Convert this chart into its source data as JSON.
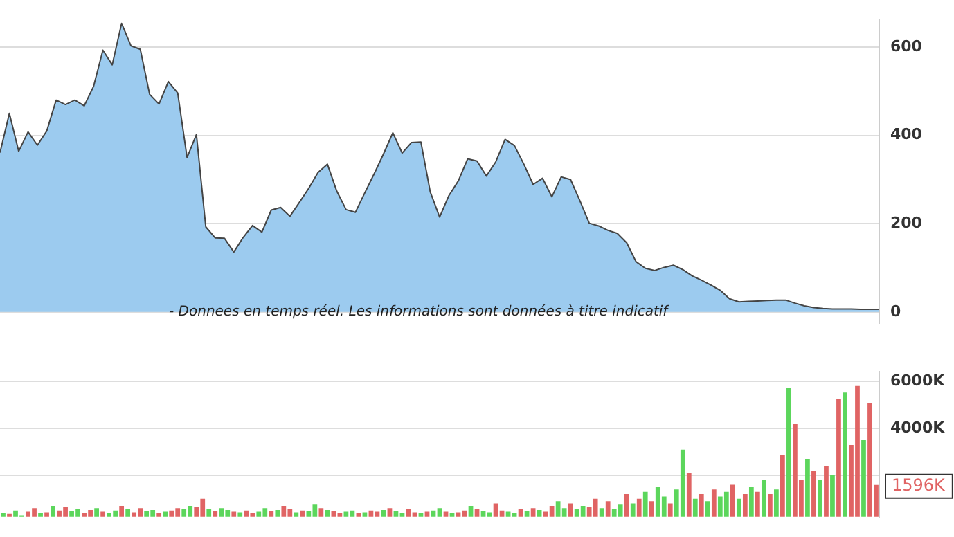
{
  "chart_data": [
    {
      "type": "area",
      "categories": [
        null,
        null,
        null,
        null,
        null,
        null,
        null,
        null,
        null,
        null,
        null,
        null,
        null,
        null,
        null,
        null,
        null,
        null,
        null,
        null,
        null,
        null,
        null,
        null,
        null,
        null,
        null,
        null,
        null,
        null,
        null,
        null,
        null,
        null,
        null,
        null,
        null,
        null,
        null,
        null,
        null,
        null,
        null,
        null,
        null,
        null,
        null,
        null,
        null,
        null,
        null,
        null,
        null,
        null,
        null,
        null,
        null,
        null,
        null,
        null,
        null,
        null,
        null,
        null,
        null,
        null,
        null,
        null,
        null,
        null,
        null,
        null,
        null,
        null,
        null,
        null,
        null,
        null,
        null,
        null,
        null,
        null,
        null,
        null,
        null,
        null,
        null,
        null,
        null,
        null,
        null,
        null,
        null,
        null,
        null
      ],
      "series": [
        {
          "color": "#9ccbef",
          "values": [
            361,
            450,
            364,
            408,
            378,
            410,
            480,
            470,
            480,
            467,
            511,
            593,
            560,
            654,
            603,
            595,
            493,
            471,
            522,
            496,
            350,
            402,
            193,
            168,
            167,
            136,
            169,
            196,
            181,
            231,
            237,
            217,
            248,
            280,
            316,
            335,
            274,
            232,
            226,
            270,
            313,
            358,
            406,
            360,
            384,
            385,
            272,
            215,
            264,
            297,
            347,
            342,
            308,
            340,
            391,
            377,
            335,
            289,
            303,
            261,
            306,
            300,
            252,
            201,
            195,
            185,
            178,
            157,
            114,
            99,
            94,
            101,
            106,
            96,
            82,
            72,
            61,
            49,
            30,
            23,
            24,
            25,
            26,
            27,
            27,
            20,
            14,
            10,
            8,
            7,
            7,
            7,
            6,
            6,
            6
          ]
        }
      ],
      "ylim": [
        -25,
        661
      ],
      "yticks": [
        0,
        200,
        400,
        600
      ],
      "grid": "y",
      "tick_labels": "y",
      "annotations": [
        "- Donnees en temps réel. Les informations sont données à titre indicatif"
      ]
    },
    {
      "type": "bar",
      "categories": [
        null,
        null,
        null,
        null,
        null,
        null,
        null,
        null,
        null,
        null,
        null,
        null,
        null,
        null,
        null,
        null,
        null,
        null,
        null,
        null,
        null,
        null,
        null,
        null,
        null,
        null,
        null,
        null,
        null,
        null,
        null,
        null,
        null,
        null,
        null,
        null,
        null,
        null,
        null,
        null,
        null,
        null,
        null,
        null,
        null,
        null,
        null,
        null,
        null,
        null,
        null,
        null,
        null,
        null,
        null,
        null,
        null,
        null,
        null,
        null,
        null,
        null,
        null,
        null,
        null,
        null,
        null,
        null,
        null,
        null,
        null,
        null,
        null,
        null,
        null,
        null,
        null,
        null,
        null,
        null,
        null,
        null,
        null,
        null,
        null,
        null,
        null,
        null,
        null,
        null,
        null,
        null,
        null,
        null,
        null,
        null,
        null,
        null,
        null,
        null,
        null,
        null,
        null,
        null,
        null,
        null,
        null,
        null,
        null,
        null,
        null,
        null,
        null,
        null,
        null,
        null,
        null,
        null,
        null,
        null,
        null,
        null,
        null,
        null,
        null,
        null,
        null,
        null,
        null,
        null,
        null,
        null,
        null,
        null,
        null,
        null,
        null,
        null,
        null,
        null,
        null
      ],
      "values": [
        400,
        350,
        500,
        300,
        450,
        600,
        380,
        420,
        700,
        500,
        650,
        480,
        550,
        400,
        520,
        600,
        450,
        380,
        500,
        700,
        550,
        420,
        600,
        480,
        520,
        380,
        450,
        500,
        600,
        550,
        700,
        650,
        1000,
        550,
        480,
        600,
        520,
        450,
        420,
        500,
        380,
        450,
        600,
        480,
        520,
        700,
        550,
        420,
        500,
        460,
        750,
        600,
        520,
        480,
        400,
        450,
        500,
        380,
        420,
        500,
        450,
        520,
        600,
        480,
        400,
        550,
        420,
        380,
        450,
        500,
        600,
        450,
        380,
        420,
        500,
        700,
        550,
        480,
        420,
        800,
        500,
        450,
        400,
        550,
        480,
        600,
        520,
        450,
        700,
        900,
        600,
        800,
        550,
        700,
        650,
        1000,
        600,
        900,
        550,
        750,
        1200,
        800,
        1000,
        1300,
        900,
        1500,
        1100,
        800,
        1400,
        3100,
        2100,
        1000,
        1200,
        900,
        1400,
        1100,
        1300,
        1600,
        1000,
        1200,
        1500,
        1300,
        1800,
        1200,
        1400,
        2880,
        5720,
        4190,
        1800,
        2700,
        2200,
        1800,
        2400,
        2000,
        5260,
        5530,
        3300,
        5810,
        3500,
        5070,
        1596
      ],
      "colors": [
        "#5cd65c",
        "#e06464",
        "#5cd65c",
        "#5cd65c",
        "#e06464",
        "#e06464",
        "#5cd65c",
        "#e06464",
        "#5cd65c",
        "#e06464",
        "#e06464",
        "#5cd65c",
        "#5cd65c",
        "#e06464",
        "#e06464",
        "#5cd65c",
        "#e06464",
        "#5cd65c",
        "#5cd65c",
        "#e06464",
        "#5cd65c",
        "#e06464",
        "#e06464",
        "#5cd65c",
        "#5cd65c",
        "#e06464",
        "#5cd65c",
        "#e06464",
        "#e06464",
        "#5cd65c",
        "#5cd65c",
        "#e06464",
        "#e06464",
        "#5cd65c",
        "#e06464",
        "#5cd65c",
        "#5cd65c",
        "#e06464",
        "#5cd65c",
        "#e06464",
        "#e06464",
        "#5cd65c",
        "#5cd65c",
        "#e06464",
        "#5cd65c",
        "#e06464",
        "#e06464",
        "#5cd65c",
        "#e06464",
        "#5cd65c",
        "#5cd65c",
        "#e06464",
        "#5cd65c",
        "#e06464",
        "#e06464",
        "#5cd65c",
        "#5cd65c",
        "#e06464",
        "#5cd65c",
        "#e06464",
        "#e06464",
        "#5cd65c",
        "#e06464",
        "#5cd65c",
        "#5cd65c",
        "#e06464",
        "#e06464",
        "#5cd65c",
        "#e06464",
        "#5cd65c",
        "#5cd65c",
        "#e06464",
        "#5cd65c",
        "#e06464",
        "#e06464",
        "#5cd65c",
        "#e06464",
        "#5cd65c",
        "#5cd65c",
        "#e06464",
        "#e06464",
        "#5cd65c",
        "#5cd65c",
        "#e06464",
        "#5cd65c",
        "#e06464",
        "#5cd65c",
        "#e06464",
        "#e06464",
        "#5cd65c",
        "#5cd65c",
        "#e06464",
        "#5cd65c",
        "#5cd65c",
        "#e06464",
        "#e06464",
        "#5cd65c",
        "#e06464",
        "#5cd65c",
        "#5cd65c",
        "#e06464",
        "#5cd65c",
        "#e06464",
        "#5cd65c",
        "#e06464",
        "#5cd65c",
        "#5cd65c",
        "#e06464",
        "#5cd65c",
        "#5cd65c",
        "#e06464",
        "#5cd65c",
        "#e06464",
        "#5cd65c",
        "#e06464",
        "#5cd65c",
        "#5cd65c",
        "#e06464",
        "#5cd65c",
        "#e06464",
        "#5cd65c",
        "#e06464",
        "#5cd65c",
        "#e06464",
        "#5cd65c",
        "#e06464",
        "#5cd65c",
        "#e06464",
        "#e06464",
        "#5cd65c",
        "#e06464",
        "#5cd65c",
        "#e06464",
        "#5cd65c",
        "#e06464",
        "#5cd65c",
        "#e06464",
        "#e06464",
        "#5cd65c",
        "#e06464",
        "#e06464"
      ],
      "ylim": [
        233,
        6420
      ],
      "yticks": [
        {
          "value": 2000,
          "label": null
        },
        {
          "value": 4000,
          "label": "4000K"
        },
        {
          "value": 6000,
          "label": "6000K"
        }
      ],
      "grid": "y",
      "tick_labels": "y",
      "annotations": [
        "1596K"
      ]
    }
  ]
}
